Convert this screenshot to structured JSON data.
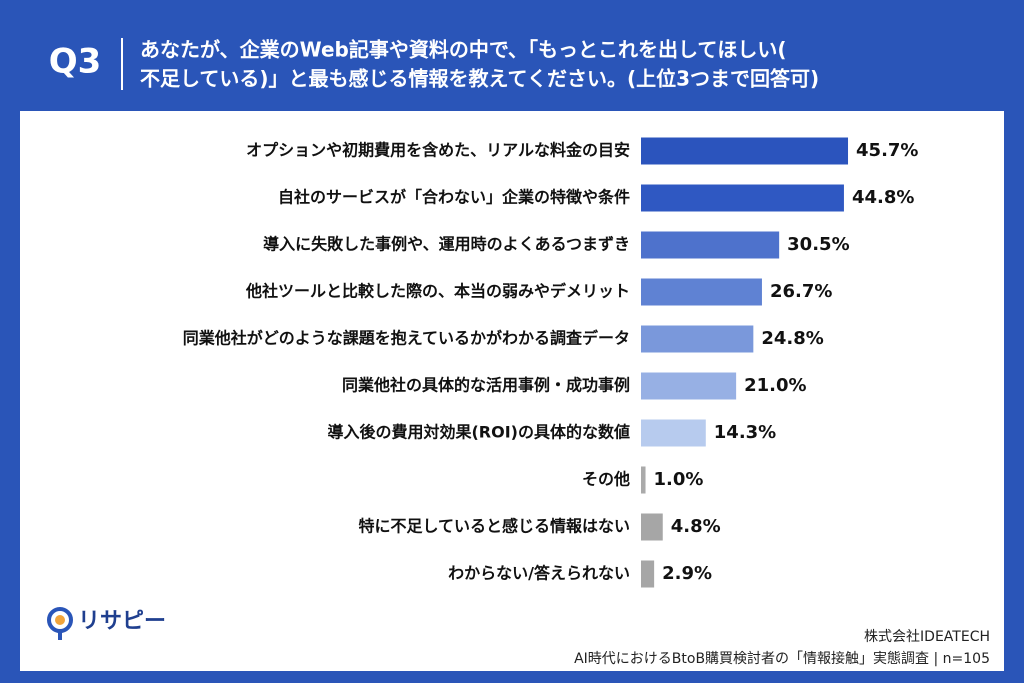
{
  "chart_data": {
    "type": "bar",
    "orientation": "horizontal",
    "question_number": "Q3",
    "title": [
      "あなたが、企業のWeb記事や資料の中で、「もっとこれを出してほしい(",
      "不足している)」と最も感じる情報を教えてください。(上位3つまで回答可)"
    ],
    "categories": [
      "オプションや初期費用を含めた、リアルな料金の目安",
      "自社のサービスが「合わない」企業の特徴や条件",
      "導入に失敗した事例や、運用時のよくあるつまずき",
      "他社ツールと比較した際の、本当の弱みやデメリット",
      "同業他社がどのような課題を抱えているかがわかる調査データ",
      "同業他社の具体的な活用事例・成功事例",
      "導入後の費用対効果(ROI)の具体的な数値",
      "その他",
      "特に不足していると感じる情報はない",
      "わからない/答えられない"
    ],
    "values": [
      45.7,
      44.8,
      30.5,
      26.7,
      24.8,
      21.0,
      14.3,
      1.0,
      4.8,
      2.9
    ],
    "value_labels": [
      "45.7%",
      "44.8%",
      "30.5%",
      "26.7%",
      "24.8%",
      "21.0%",
      "14.3%",
      "1.0%",
      "4.8%",
      "2.9%"
    ],
    "colors": [
      "#2b54bd",
      "#2f58c2",
      "#4e72cc",
      "#5f82d3",
      "#7a98db",
      "#97b0e4",
      "#b7cbee",
      "#aaaaaa",
      "#a6a6a6",
      "#a6a6a6"
    ],
    "logo": "リサピー",
    "source": [
      "株式会社IDEATECH",
      "AI時代におけるBtoB購買検討者の「情報接触」実態調査 | n=105"
    ]
  }
}
